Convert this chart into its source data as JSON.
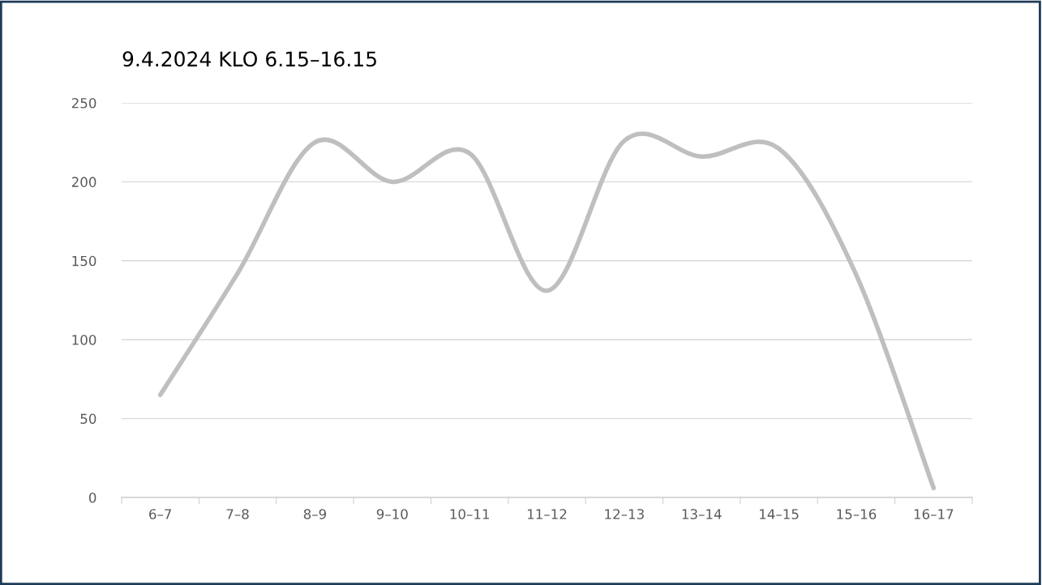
{
  "chart_data": {
    "type": "line",
    "title": "9.4.2024 KLO 6.15–16.15",
    "categories": [
      "6–7",
      "7–8",
      "8–9",
      "9–10",
      "10–11",
      "11–12",
      "12–13",
      "13–14",
      "14–15",
      "15–16",
      "16–17"
    ],
    "series": [
      {
        "color": "#bfbfbf",
        "values": [
          65,
          142,
          225,
          200,
          218,
          131,
          226,
          216,
          221,
          141,
          6
        ]
      }
    ],
    "ylim": [
      0,
      250
    ],
    "yticks": [
      0,
      50,
      100,
      150,
      200,
      250
    ],
    "grid": "y",
    "legend": false,
    "marker": "none",
    "line_style": "solid"
  }
}
